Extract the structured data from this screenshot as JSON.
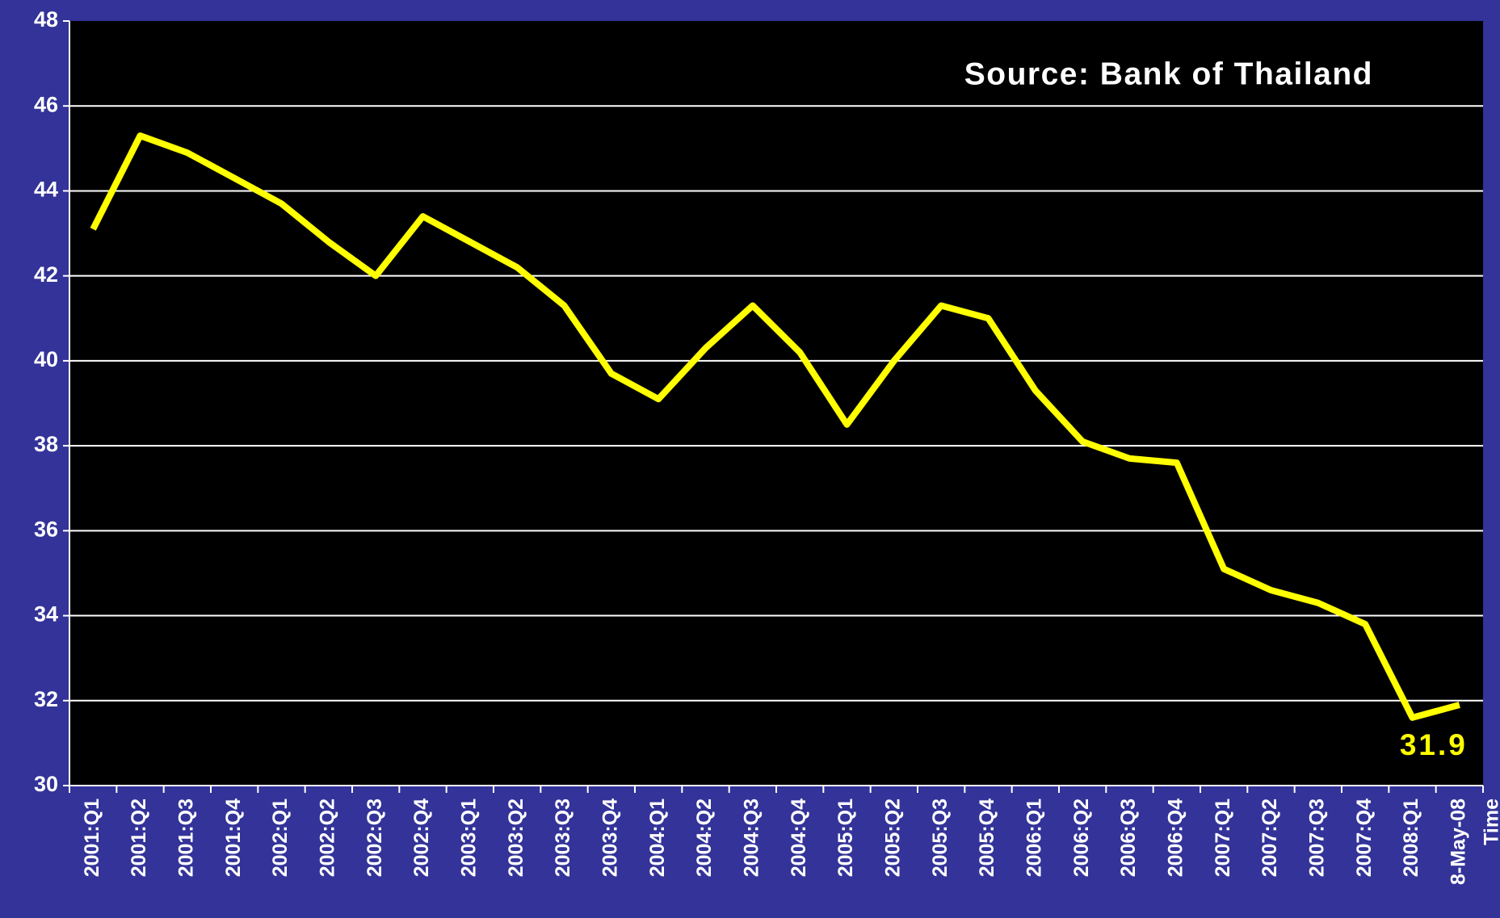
{
  "chart_data": {
    "type": "line",
    "annotation": "Source: Bank of Thailand",
    "x_label": "Time",
    "categories": [
      "2001:Q1",
      "2001:Q2",
      "2001:Q3",
      "2001:Q4",
      "2002:Q1",
      "2002:Q2",
      "2002:Q3",
      "2002:Q4",
      "2003:Q1",
      "2003:Q2",
      "2003:Q3",
      "2003:Q4",
      "2004:Q1",
      "2004:Q2",
      "2004:Q3",
      "2004:Q4",
      "2005:Q1",
      "2005:Q2",
      "2005:Q3",
      "2005:Q4",
      "2006:Q1",
      "2006:Q2",
      "2006:Q3",
      "2006:Q4",
      "2007:Q1",
      "2007:Q2",
      "2007:Q3",
      "2007:Q4",
      "2008:Q1",
      "8-May-08"
    ],
    "series": [
      {
        "color": "#ffff00",
        "values": [
          43.1,
          45.3,
          44.9,
          44.3,
          43.7,
          42.8,
          42.0,
          43.4,
          42.8,
          42.2,
          41.3,
          39.7,
          39.1,
          40.3,
          41.3,
          40.2,
          38.5,
          40.0,
          41.3,
          41.0,
          39.3,
          38.1,
          37.7,
          37.6,
          35.1,
          34.6,
          34.3,
          33.8,
          31.6,
          31.9
        ]
      }
    ],
    "ylim": [
      30,
      48
    ],
    "yticks": [
      30,
      32,
      34,
      36,
      38,
      40,
      42,
      44,
      46,
      48
    ],
    "grid": true
  }
}
